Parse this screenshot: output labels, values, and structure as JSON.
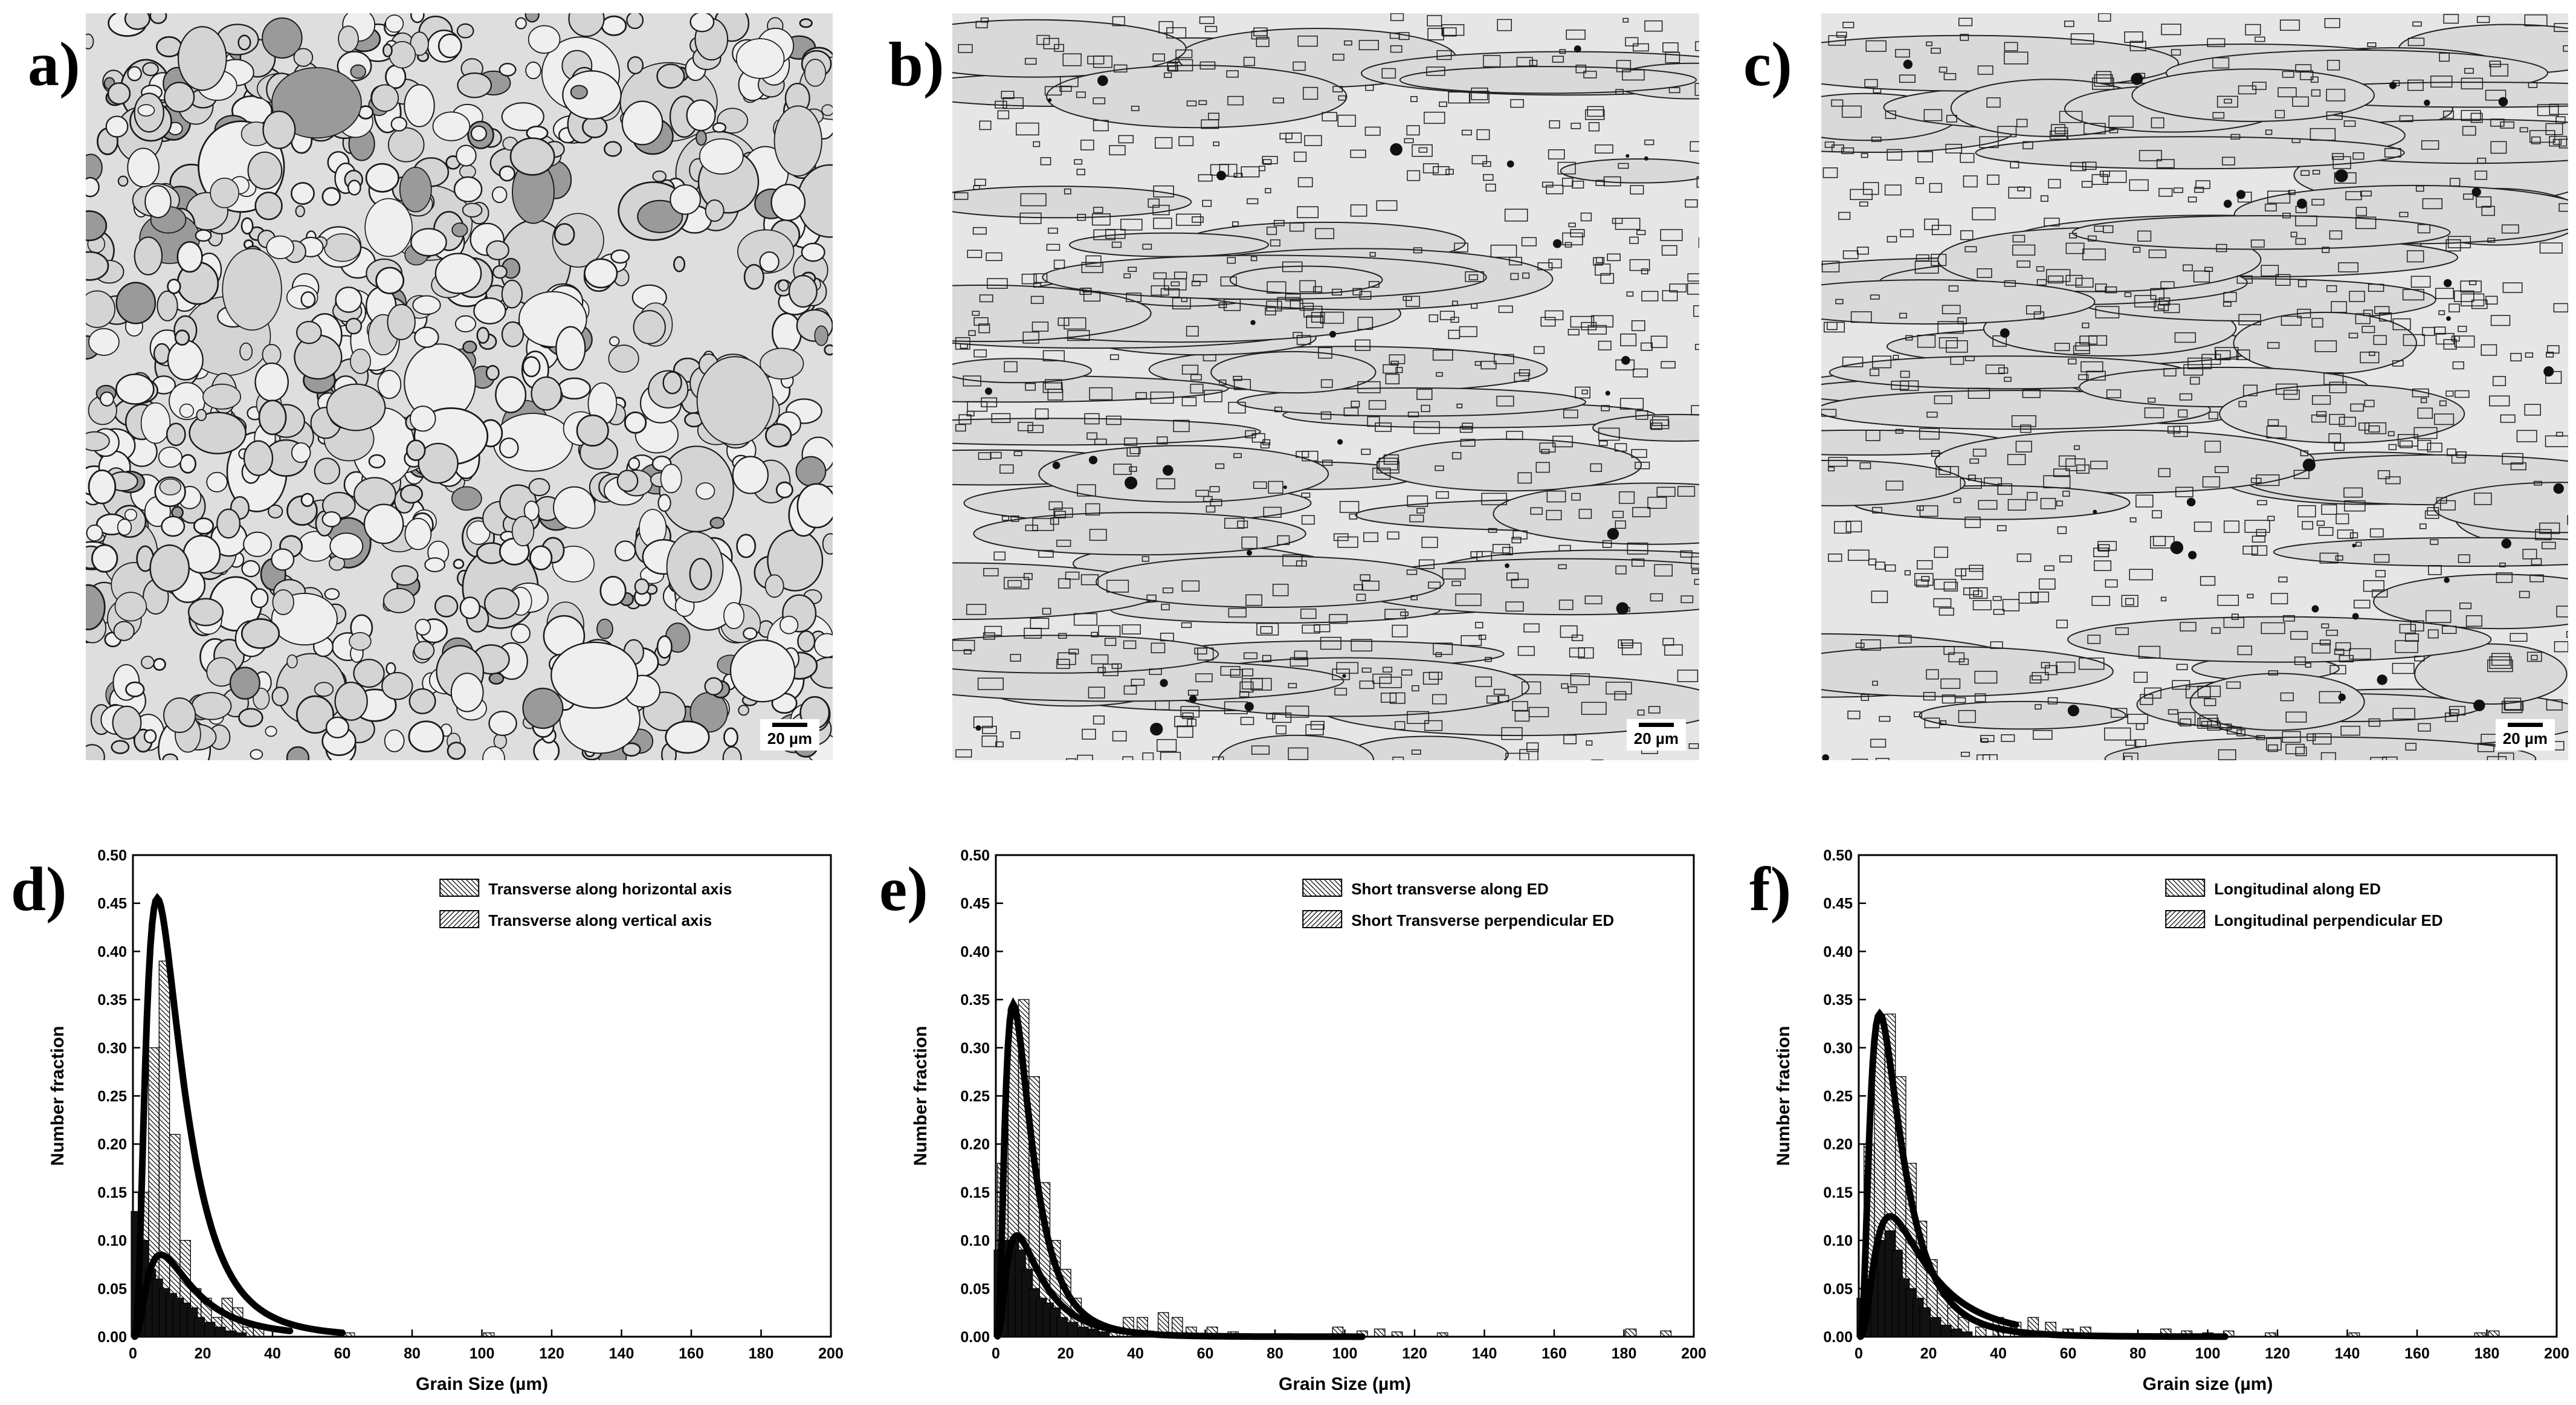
{
  "micrographs": [
    {
      "panel_label": "a)",
      "scale_bar": "20 µm",
      "morphology": "equiaxed"
    },
    {
      "panel_label": "b)",
      "scale_bar": "20 µm",
      "morphology": "elongated"
    },
    {
      "panel_label": "c)",
      "scale_bar": "20 µm",
      "morphology": "elongated"
    }
  ],
  "chart_data": [
    {
      "panel_label": "d)",
      "type": "bar",
      "xlabel": "Grain Size (µm)",
      "ylabel": "Number fraction",
      "xlim": [
        0,
        200
      ],
      "ylim": [
        0,
        0.5
      ],
      "xticks": [
        "0",
        "20",
        "40",
        "60",
        "80",
        "100",
        "120",
        "140",
        "160",
        "180",
        "200"
      ],
      "yticks": [
        "0.00",
        "0.05",
        "0.10",
        "0.15",
        "0.20",
        "0.25",
        "0.30",
        "0.35",
        "0.40",
        "0.45",
        "0.50"
      ],
      "legend_position": "top-right",
      "series": [
        {
          "name": "Transverse along horizontal axis",
          "hatch": "backslash",
          "bins": [
            [
              3,
              0.15
            ],
            [
              6,
              0.3
            ],
            [
              9,
              0.39
            ],
            [
              12,
              0.21
            ],
            [
              15,
              0.1
            ],
            [
              18,
              0.05
            ],
            [
              21,
              0.04
            ],
            [
              24,
              0.02
            ],
            [
              27,
              0.04
            ],
            [
              30,
              0.03
            ],
            [
              33,
              0.01
            ],
            [
              36,
              0.01
            ],
            [
              62,
              0.004
            ],
            [
              102,
              0.004
            ]
          ],
          "fit_peak": [
            7,
            0.455
          ]
        },
        {
          "name": "Transverse along vertical axis",
          "hatch": "slash",
          "bins": [
            [
              1,
              0.13
            ],
            [
              3,
              0.1
            ],
            [
              5,
              0.07
            ],
            [
              7,
              0.06
            ],
            [
              9,
              0.05
            ],
            [
              11,
              0.045
            ],
            [
              13,
              0.04
            ],
            [
              15,
              0.035
            ],
            [
              17,
              0.03
            ],
            [
              19,
              0.02
            ],
            [
              22,
              0.015
            ],
            [
              25,
              0.01
            ],
            [
              28,
              0.006
            ],
            [
              31,
              0.004
            ]
          ],
          "fit_peak": [
            8,
            0.085
          ]
        }
      ]
    },
    {
      "panel_label": "e)",
      "type": "bar",
      "xlabel": "Grain Size (µm)",
      "ylabel": "Number fraction",
      "xlim": [
        0,
        200
      ],
      "ylim": [
        0,
        0.5
      ],
      "xticks": [
        "0",
        "20",
        "40",
        "60",
        "80",
        "100",
        "120",
        "140",
        "160",
        "180",
        "200"
      ],
      "yticks": [
        "0.00",
        "0.05",
        "0.10",
        "0.15",
        "0.20",
        "0.25",
        "0.30",
        "0.35",
        "0.40",
        "0.45",
        "0.50"
      ],
      "legend_position": "top-right",
      "series": [
        {
          "name": "Short transverse along ED",
          "hatch": "backslash",
          "bins": [
            [
              2,
              0.18
            ],
            [
              5,
              0.34
            ],
            [
              8,
              0.35
            ],
            [
              11,
              0.27
            ],
            [
              14,
              0.16
            ],
            [
              17,
              0.1
            ],
            [
              20,
              0.07
            ],
            [
              23,
              0.04
            ],
            [
              26,
              0.02
            ],
            [
              29,
              0.01
            ],
            [
              34,
              0.01
            ],
            [
              38,
              0.02
            ],
            [
              42,
              0.02
            ],
            [
              48,
              0.025
            ],
            [
              52,
              0.02
            ],
            [
              56,
              0.01
            ],
            [
              62,
              0.01
            ],
            [
              68,
              0.005
            ],
            [
              98,
              0.01
            ],
            [
              105,
              0.006
            ],
            [
              110,
              0.008
            ],
            [
              115,
              0.005
            ],
            [
              128,
              0.004
            ],
            [
              182,
              0.008
            ],
            [
              192,
              0.006
            ]
          ],
          "fit_peak": [
            5,
            0.345
          ]
        },
        {
          "name": "Short Transverse perpendicular ED",
          "hatch": "slash",
          "bins": [
            [
              1,
              0.09
            ],
            [
              3,
              0.1
            ],
            [
              5,
              0.1
            ],
            [
              7,
              0.09
            ],
            [
              9,
              0.07
            ],
            [
              11,
              0.05
            ],
            [
              13,
              0.04
            ],
            [
              15,
              0.035
            ],
            [
              17,
              0.03
            ],
            [
              19,
              0.02
            ],
            [
              22,
              0.015
            ],
            [
              25,
              0.01
            ],
            [
              28,
              0.008
            ],
            [
              31,
              0.005
            ]
          ],
          "fit_peak": [
            6,
            0.105
          ]
        }
      ]
    },
    {
      "panel_label": "f)",
      "type": "bar",
      "xlabel": "Grain size (µm)",
      "ylabel": "Number fraction",
      "xlim": [
        0,
        200
      ],
      "ylim": [
        0,
        0.5
      ],
      "xticks": [
        "0",
        "20",
        "40",
        "60",
        "80",
        "100",
        "120",
        "140",
        "160",
        "180",
        "200"
      ],
      "yticks": [
        "0.00",
        "0.05",
        "0.10",
        "0.15",
        "0.20",
        "0.25",
        "0.30",
        "0.35",
        "0.40",
        "0.45",
        "0.50"
      ],
      "legend_position": "top-right",
      "series": [
        {
          "name": "Longitudinal along ED",
          "hatch": "backslash",
          "bins": [
            [
              3,
              0.2
            ],
            [
              6,
              0.32
            ],
            [
              9,
              0.335
            ],
            [
              12,
              0.27
            ],
            [
              15,
              0.18
            ],
            [
              18,
              0.12
            ],
            [
              21,
              0.08
            ],
            [
              24,
              0.05
            ],
            [
              27,
              0.03
            ],
            [
              30,
              0.02
            ],
            [
              35,
              0.01
            ],
            [
              40,
              0.02
            ],
            [
              45,
              0.015
            ],
            [
              50,
              0.02
            ],
            [
              55,
              0.015
            ],
            [
              60,
              0.008
            ],
            [
              65,
              0.01
            ],
            [
              88,
              0.008
            ],
            [
              94,
              0.006
            ],
            [
              100,
              0.004
            ],
            [
              106,
              0.006
            ],
            [
              118,
              0.004
            ],
            [
              142,
              0.004
            ],
            [
              178,
              0.004
            ],
            [
              182,
              0.006
            ]
          ],
          "fit_peak": [
            6,
            0.335
          ]
        },
        {
          "name": "Longitudinal perpendicular ED",
          "hatch": "slash",
          "bins": [
            [
              1,
              0.04
            ],
            [
              3,
              0.06
            ],
            [
              5,
              0.08
            ],
            [
              7,
              0.1
            ],
            [
              9,
              0.11
            ],
            [
              11,
              0.09
            ],
            [
              13,
              0.06
            ],
            [
              15,
              0.05
            ],
            [
              17,
              0.04
            ],
            [
              19,
              0.03
            ],
            [
              22,
              0.02
            ],
            [
              25,
              0.012
            ],
            [
              28,
              0.008
            ],
            [
              31,
              0.005
            ]
          ],
          "fit_peak": [
            9,
            0.125
          ]
        }
      ]
    }
  ]
}
